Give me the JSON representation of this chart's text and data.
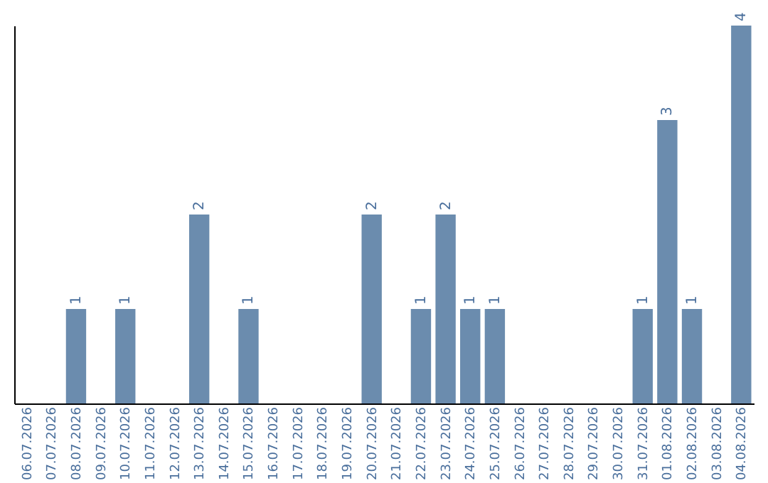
{
  "chart_data": {
    "type": "bar",
    "categories": [
      "06.07.2026",
      "07.07.2026",
      "08.07.2026",
      "09.07.2026",
      "10.07.2026",
      "11.07.2026",
      "12.07.2026",
      "13.07.2026",
      "14.07.2026",
      "15.07.2026",
      "16.07.2026",
      "17.07.2026",
      "18.07.2026",
      "19.07.2026",
      "20.07.2026",
      "21.07.2026",
      "22.07.2026",
      "23.07.2026",
      "24.07.2026",
      "25.07.2026",
      "26.07.2026",
      "27.07.2026",
      "28.07.2026",
      "29.07.2026",
      "30.07.2026",
      "31.07.2026",
      "01.08.2026",
      "02.08.2026",
      "03.08.2026",
      "04.08.2026"
    ],
    "values": [
      0,
      0,
      1,
      0,
      1,
      0,
      0,
      2,
      0,
      1,
      0,
      0,
      0,
      0,
      2,
      0,
      1,
      2,
      1,
      1,
      0,
      0,
      0,
      0,
      0,
      1,
      3,
      1,
      0,
      4
    ],
    "value_labels": [
      null,
      null,
      "1",
      null,
      "1",
      null,
      null,
      "2",
      null,
      "1",
      null,
      null,
      null,
      null,
      "2",
      null,
      "1",
      "2",
      "1",
      "1",
      null,
      null,
      null,
      null,
      null,
      "1",
      "3",
      "1",
      null,
      "4"
    ],
    "color": "#6b8cae",
    "ylim": [
      0,
      4
    ],
    "tick_labels": "x",
    "grid": false
  }
}
